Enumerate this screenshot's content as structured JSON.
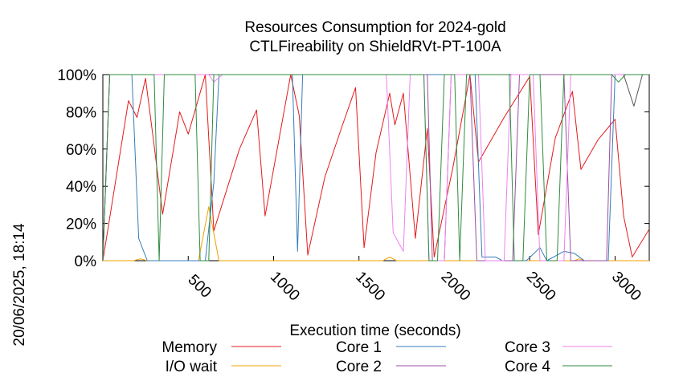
{
  "chart_data": {
    "type": "line",
    "title": "Resources Consumption for 2024-gold",
    "subtitle": "CTLFireability on ShieldRVt-PT-100A",
    "xlabel": "Execution time (seconds)",
    "ylabel": "",
    "timestamp": "20/06/2025, 18:14",
    "xlim": [
      0,
      3200
    ],
    "ylim": [
      0,
      100
    ],
    "x_ticks": [
      500,
      1000,
      1500,
      2000,
      2500,
      3000
    ],
    "y_ticks": [
      0,
      20,
      40,
      60,
      80,
      100
    ],
    "y_tick_labels": [
      "0%",
      "20%",
      "40%",
      "60%",
      "80%",
      "100%"
    ],
    "legend_placement": "bottom",
    "series": [
      {
        "name": "Memory",
        "color": "#e41a1c",
        "points": [
          [
            0,
            0
          ],
          [
            150,
            86
          ],
          [
            200,
            77
          ],
          [
            250,
            98
          ],
          [
            300,
            62
          ],
          [
            350,
            25
          ],
          [
            450,
            80
          ],
          [
            500,
            68
          ],
          [
            600,
            100
          ],
          [
            650,
            16
          ],
          [
            800,
            60
          ],
          [
            900,
            81
          ],
          [
            950,
            24
          ],
          [
            1100,
            100
          ],
          [
            1150,
            78
          ],
          [
            1200,
            3
          ],
          [
            1300,
            45
          ],
          [
            1400,
            72
          ],
          [
            1480,
            93
          ],
          [
            1530,
            7
          ],
          [
            1600,
            58
          ],
          [
            1680,
            90
          ],
          [
            1710,
            73
          ],
          [
            1760,
            90
          ],
          [
            1830,
            12
          ],
          [
            1900,
            71
          ],
          [
            1940,
            2
          ],
          [
            2050,
            50
          ],
          [
            2150,
            100
          ],
          [
            2200,
            53
          ],
          [
            2350,
            77
          ],
          [
            2500,
            99
          ],
          [
            2550,
            14
          ],
          [
            2650,
            66
          ],
          [
            2750,
            91
          ],
          [
            2800,
            49
          ],
          [
            2900,
            65
          ],
          [
            3000,
            76
          ],
          [
            3050,
            24
          ],
          [
            3100,
            2
          ],
          [
            3200,
            17
          ],
          [
            3250,
            26
          ]
        ]
      },
      {
        "name": "I/O wait",
        "color": "#f0a000",
        "points": [
          [
            0,
            0
          ],
          [
            180,
            0
          ],
          [
            220,
            1
          ],
          [
            260,
            0
          ],
          [
            560,
            0
          ],
          [
            620,
            29
          ],
          [
            680,
            0
          ],
          [
            1640,
            0
          ],
          [
            1680,
            2
          ],
          [
            1720,
            0
          ],
          [
            2760,
            0
          ],
          [
            2790,
            1
          ],
          [
            2820,
            0
          ],
          [
            3250,
            0
          ]
        ]
      },
      {
        "name": "Core 1",
        "color": "#377eb8",
        "points": [
          [
            0,
            0
          ],
          [
            40,
            100
          ],
          [
            170,
            100
          ],
          [
            210,
            12
          ],
          [
            260,
            0
          ],
          [
            600,
            0
          ],
          [
            650,
            42
          ],
          [
            680,
            100
          ],
          [
            1110,
            100
          ],
          [
            1140,
            5
          ],
          [
            1170,
            100
          ],
          [
            2180,
            100
          ],
          [
            2220,
            2
          ],
          [
            2300,
            2
          ],
          [
            2340,
            0
          ],
          [
            2480,
            0
          ],
          [
            2560,
            7
          ],
          [
            2600,
            0
          ],
          [
            2700,
            5
          ],
          [
            2760,
            4
          ],
          [
            2820,
            0
          ],
          [
            2960,
            0
          ],
          [
            3000,
            100
          ],
          [
            3100,
            100
          ],
          [
            3250,
            100
          ]
        ]
      },
      {
        "name": "Core 2",
        "color": "#984ea3",
        "points": [
          [
            0,
            0
          ],
          [
            40,
            100
          ],
          [
            1900,
            100
          ],
          [
            1930,
            0
          ],
          [
            2000,
            0
          ],
          [
            2040,
            100
          ],
          [
            2150,
            100
          ],
          [
            2190,
            0
          ],
          [
            2400,
            0
          ],
          [
            2440,
            100
          ],
          [
            2700,
            100
          ],
          [
            2740,
            0
          ],
          [
            2950,
            0
          ],
          [
            2980,
            100
          ],
          [
            3250,
            100
          ]
        ]
      },
      {
        "name": "Core 3",
        "color": "#ee82ee",
        "points": [
          [
            0,
            0
          ],
          [
            40,
            100
          ],
          [
            620,
            100
          ],
          [
            650,
            96
          ],
          [
            700,
            100
          ],
          [
            1660,
            100
          ],
          [
            1700,
            15
          ],
          [
            1760,
            5
          ],
          [
            1800,
            100
          ],
          [
            1880,
            100
          ],
          [
            1910,
            0
          ],
          [
            2000,
            0
          ],
          [
            2040,
            100
          ],
          [
            2200,
            100
          ],
          [
            2240,
            0
          ],
          [
            2350,
            0
          ],
          [
            2390,
            100
          ],
          [
            2520,
            100
          ],
          [
            2560,
            0
          ],
          [
            2700,
            0
          ],
          [
            2740,
            100
          ],
          [
            2950,
            100
          ],
          [
            3250,
            100
          ]
        ]
      },
      {
        "name": "Core 4",
        "color": "#2e8b3e",
        "points": [
          [
            0,
            0
          ],
          [
            40,
            100
          ],
          [
            300,
            100
          ],
          [
            330,
            0
          ],
          [
            360,
            100
          ],
          [
            540,
            100
          ],
          [
            570,
            0
          ],
          [
            620,
            0
          ],
          [
            650,
            100
          ],
          [
            1880,
            100
          ],
          [
            1910,
            0
          ],
          [
            1960,
            0
          ],
          [
            2000,
            100
          ],
          [
            2060,
            100
          ],
          [
            2090,
            0
          ],
          [
            2130,
            100
          ],
          [
            2380,
            100
          ],
          [
            2410,
            0
          ],
          [
            2460,
            0
          ],
          [
            2500,
            100
          ],
          [
            2560,
            100
          ],
          [
            2600,
            0
          ],
          [
            2660,
            0
          ],
          [
            2700,
            100
          ],
          [
            2980,
            100
          ],
          [
            3020,
            96
          ],
          [
            3060,
            100
          ],
          [
            3250,
            100
          ]
        ]
      },
      {
        "name": "",
        "color": "#555555",
        "points": [
          [
            3050,
            100
          ],
          [
            3110,
            83
          ],
          [
            3160,
            100
          ]
        ]
      }
    ]
  }
}
